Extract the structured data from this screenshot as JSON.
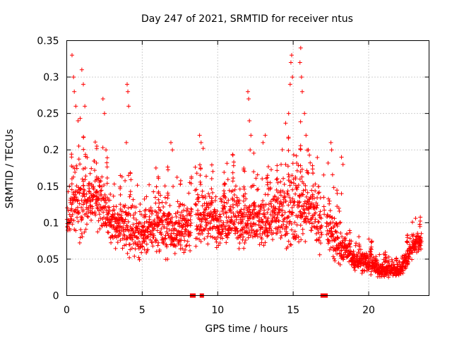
{
  "chart_data": {
    "type": "scatter",
    "title": "Day 247 of 2021, SRMTID for receiver ntus",
    "xlabel": "GPS time / hours",
    "ylabel": "SRMTID / TECUs",
    "xlim": [
      0,
      24
    ],
    "ylim": [
      0,
      0.35
    ],
    "grid": true,
    "marker": "+",
    "color": "#ff0000",
    "xticks": [
      0,
      5,
      10,
      15,
      20
    ],
    "xtick_labels": [
      "0",
      "5",
      "10",
      "15",
      "20"
    ],
    "yticks": [
      0,
      0.05,
      0.1,
      0.15,
      0.2,
      0.25,
      0.3,
      0.35
    ],
    "ytick_labels": [
      "0",
      "0.05",
      "0.1",
      "0.15",
      "0.2",
      "0.25",
      "0.3",
      "0.35"
    ],
    "zero_markers_x": [
      8.3,
      8.4,
      8.95,
      16.95,
      17.15
    ],
    "envelope": {
      "x": [
        0,
        0.5,
        1,
        1.5,
        2,
        2.5,
        3,
        3.5,
        4,
        5,
        6,
        7,
        8,
        9,
        10,
        11,
        12,
        13,
        14,
        15,
        15.5,
        16,
        17,
        17.5,
        18,
        18.5,
        19,
        20,
        21,
        22,
        22.5,
        23,
        23.5
      ],
      "median": [
        0.1,
        0.13,
        0.12,
        0.13,
        0.13,
        0.12,
        0.1,
        0.09,
        0.09,
        0.08,
        0.1,
        0.09,
        0.09,
        0.11,
        0.1,
        0.11,
        0.1,
        0.1,
        0.11,
        0.12,
        0.13,
        0.12,
        0.09,
        0.09,
        0.07,
        0.06,
        0.05,
        0.045,
        0.035,
        0.035,
        0.05,
        0.07,
        0.075
      ],
      "spread": [
        0.04,
        0.07,
        0.07,
        0.05,
        0.05,
        0.05,
        0.04,
        0.05,
        0.05,
        0.04,
        0.05,
        0.05,
        0.04,
        0.05,
        0.05,
        0.05,
        0.06,
        0.05,
        0.05,
        0.08,
        0.08,
        0.06,
        0.05,
        0.05,
        0.04,
        0.03,
        0.02,
        0.02,
        0.015,
        0.015,
        0.02,
        0.02,
        0.02
      ]
    },
    "spikes": [
      [
        0.35,
        0.33
      ],
      [
        0.45,
        0.3
      ],
      [
        0.5,
        0.28
      ],
      [
        0.6,
        0.26
      ],
      [
        0.75,
        0.24
      ],
      [
        1.0,
        0.31
      ],
      [
        1.1,
        0.29
      ],
      [
        1.2,
        0.26
      ],
      [
        2.4,
        0.27
      ],
      [
        2.5,
        0.25
      ],
      [
        2.6,
        0.2
      ],
      [
        4.0,
        0.29
      ],
      [
        4.05,
        0.28
      ],
      [
        4.1,
        0.26
      ],
      [
        3.95,
        0.21
      ],
      [
        6.9,
        0.21
      ],
      [
        7.0,
        0.2
      ],
      [
        8.8,
        0.22
      ],
      [
        8.9,
        0.21
      ],
      [
        12.0,
        0.28
      ],
      [
        12.05,
        0.27
      ],
      [
        12.1,
        0.24
      ],
      [
        12.2,
        0.22
      ],
      [
        12.15,
        0.2
      ],
      [
        13.0,
        0.21
      ],
      [
        13.15,
        0.22
      ],
      [
        14.2,
        0.18
      ],
      [
        14.5,
        0.18
      ],
      [
        14.7,
        0.25
      ],
      [
        14.8,
        0.29
      ],
      [
        14.85,
        0.32
      ],
      [
        14.9,
        0.33
      ],
      [
        14.95,
        0.3
      ],
      [
        15.5,
        0.34
      ],
      [
        15.45,
        0.32
      ],
      [
        15.55,
        0.3
      ],
      [
        15.6,
        0.28
      ],
      [
        15.75,
        0.25
      ],
      [
        15.85,
        0.22
      ],
      [
        16.0,
        0.2
      ],
      [
        17.5,
        0.21
      ],
      [
        17.55,
        0.2
      ],
      [
        18.2,
        0.19
      ],
      [
        18.3,
        0.18
      ],
      [
        18.2,
        0.14
      ]
    ]
  }
}
